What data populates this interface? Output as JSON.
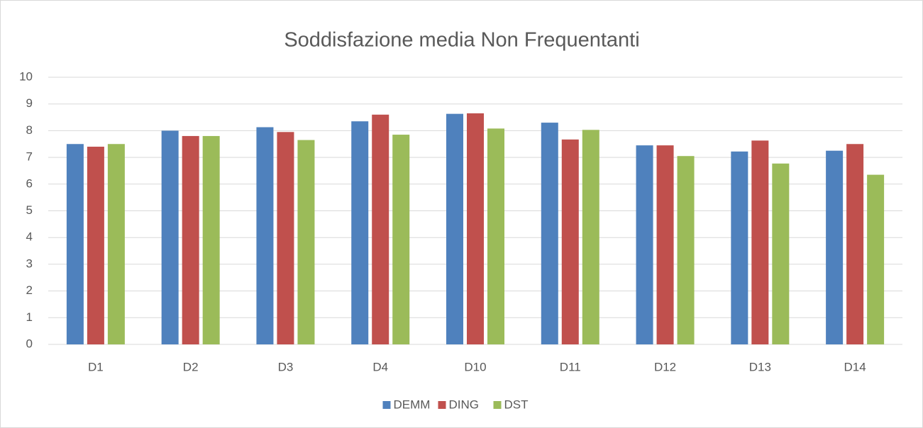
{
  "chart_data": {
    "type": "bar",
    "title": "Soddisfazione media Non Frequentanti",
    "categories": [
      "D1",
      "D2",
      "D3",
      "D4",
      "D10",
      "D11",
      "D12",
      "D13",
      "D14"
    ],
    "series": [
      {
        "name": "DEMM",
        "color": "#4f81bd",
        "values": [
          7.5,
          8.0,
          8.13,
          8.35,
          8.63,
          8.3,
          7.45,
          7.22,
          7.25
        ]
      },
      {
        "name": "DING",
        "color": "#c0504d",
        "values": [
          7.4,
          7.8,
          7.95,
          8.6,
          8.65,
          7.67,
          7.45,
          7.63,
          7.5
        ]
      },
      {
        "name": "DST",
        "color": "#9bbb59",
        "values": [
          7.5,
          7.8,
          7.65,
          7.85,
          8.08,
          8.03,
          7.05,
          6.77,
          6.35
        ]
      }
    ],
    "ylim": [
      0,
      10
    ],
    "yticks": [
      0,
      1,
      2,
      3,
      4,
      5,
      6,
      7,
      8,
      9,
      10
    ],
    "grid": true,
    "legend": "bottom"
  }
}
